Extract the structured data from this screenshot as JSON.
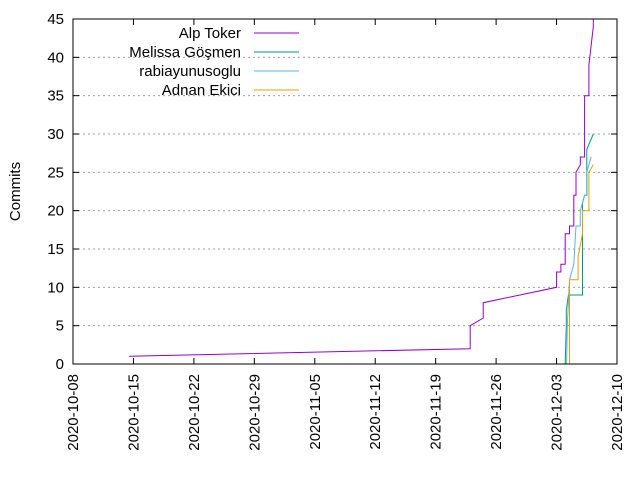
{
  "chart_data": {
    "type": "line",
    "title": "",
    "xlabel": "",
    "ylabel": "Commits",
    "x_type": "date",
    "xlim": [
      "2020-10-08",
      "2020-12-10"
    ],
    "ylim": [
      0,
      45
    ],
    "x_ticks": [
      "2020-10-08",
      "2020-10-15",
      "2020-10-22",
      "2020-10-29",
      "2020-11-05",
      "2020-11-12",
      "2020-11-19",
      "2020-11-26",
      "2020-12-03",
      "2020-12-10"
    ],
    "y_ticks": [
      0,
      5,
      10,
      15,
      20,
      25,
      30,
      35,
      40,
      45
    ],
    "grid": {
      "y": true,
      "x": false,
      "style": "dotted"
    },
    "legend_position": "top-left",
    "series": [
      {
        "name": "Alp Toker",
        "color": "#9400d3",
        "points": [
          [
            "2020-10-14T12:00",
            1
          ],
          [
            "2020-11-23T00:00",
            2
          ],
          [
            "2020-11-23T00:00",
            5
          ],
          [
            "2020-11-24T12:00",
            6
          ],
          [
            "2020-11-24T12:00",
            8
          ],
          [
            "2020-12-03T00:00",
            10
          ],
          [
            "2020-12-03T00:00",
            12
          ],
          [
            "2020-12-03T12:00",
            12
          ],
          [
            "2020-12-03T12:00",
            13
          ],
          [
            "2020-12-04T00:00",
            13
          ],
          [
            "2020-12-04T00:00",
            17
          ],
          [
            "2020-12-04T12:00",
            17
          ],
          [
            "2020-12-04T12:00",
            18
          ],
          [
            "2020-12-05T00:00",
            18
          ],
          [
            "2020-12-05T00:00",
            22
          ],
          [
            "2020-12-05T06:00",
            22
          ],
          [
            "2020-12-05T06:00",
            25
          ],
          [
            "2020-12-05T18:00",
            26
          ],
          [
            "2020-12-05T18:00",
            27
          ],
          [
            "2020-12-06T06:00",
            27
          ],
          [
            "2020-12-06T06:00",
            35
          ],
          [
            "2020-12-06T18:00",
            35
          ],
          [
            "2020-12-06T18:00",
            39
          ],
          [
            "2020-12-07T06:00",
            44
          ],
          [
            "2020-12-07T06:00",
            45
          ]
        ]
      },
      {
        "name": "Melissa Göşmen",
        "color": "#009e73",
        "points": [
          [
            "2020-12-04T00:00",
            0
          ],
          [
            "2020-12-04T03:00",
            5
          ],
          [
            "2020-12-04T03:00",
            7
          ],
          [
            "2020-12-04T09:00",
            9
          ],
          [
            "2020-12-06T00:00",
            9
          ],
          [
            "2020-12-06T00:00",
            21
          ],
          [
            "2020-12-06T06:00",
            22
          ],
          [
            "2020-12-06T12:00",
            22
          ],
          [
            "2020-12-06T12:00",
            28
          ],
          [
            "2020-12-07T06:00",
            30
          ]
        ]
      },
      {
        "name": "rabiayunusoglu",
        "color": "#56b4e9",
        "points": [
          [
            "2020-12-04T04:00",
            0
          ],
          [
            "2020-12-04T06:00",
            5
          ],
          [
            "2020-12-04T12:00",
            11
          ],
          [
            "2020-12-05T00:00",
            13
          ],
          [
            "2020-12-05T06:00",
            18
          ],
          [
            "2020-12-05T18:00",
            18
          ],
          [
            "2020-12-05T18:00",
            20
          ],
          [
            "2020-12-06T06:00",
            22
          ],
          [
            "2020-12-06T12:00",
            22
          ],
          [
            "2020-12-06T12:00",
            25
          ],
          [
            "2020-12-07T00:00",
            27
          ]
        ]
      },
      {
        "name": "Adnan Ekici",
        "color": "#e69f00",
        "points": [
          [
            "2020-12-04T12:00",
            0
          ],
          [
            "2020-12-04T12:00",
            11
          ],
          [
            "2020-12-05T12:00",
            11
          ],
          [
            "2020-12-05T12:00",
            14
          ],
          [
            "2020-12-06T00:00",
            17
          ],
          [
            "2020-12-06T00:00",
            20
          ],
          [
            "2020-12-06T18:00",
            20
          ],
          [
            "2020-12-06T18:00",
            25
          ],
          [
            "2020-12-07T06:00",
            26
          ]
        ]
      }
    ]
  }
}
